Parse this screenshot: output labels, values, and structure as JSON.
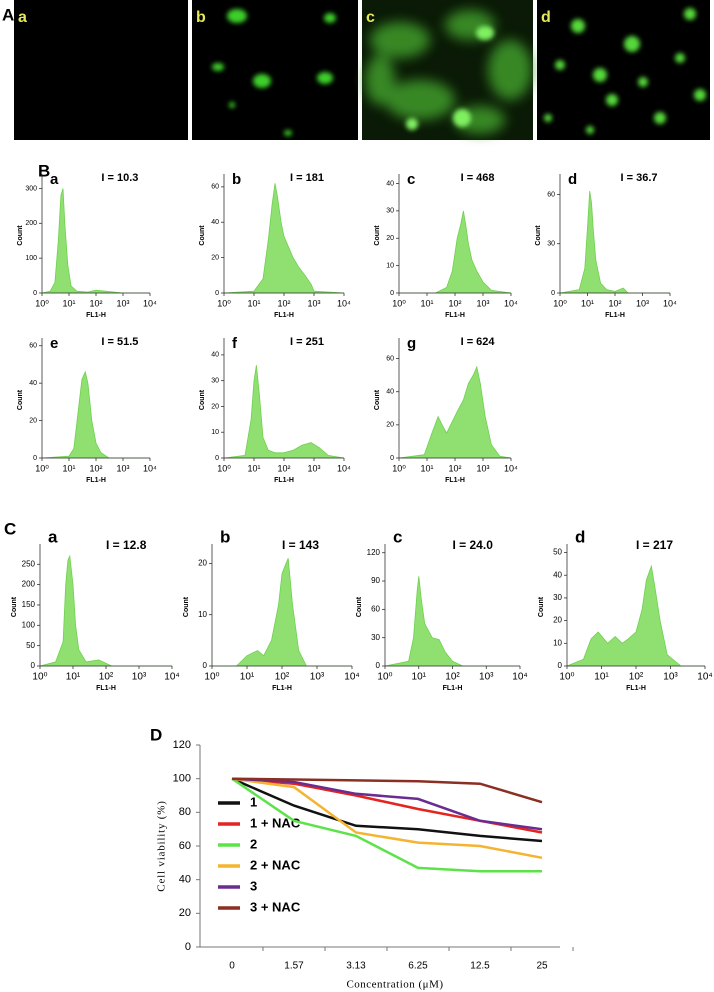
{
  "figure": {
    "panel_labels": [
      "A",
      "B",
      "C",
      "D"
    ],
    "image_labels": [
      "a",
      "b",
      "c",
      "d"
    ]
  },
  "chart_data": [
    {
      "type": "area",
      "panel": "a",
      "annotation": "I = 10.3",
      "x_label": "FL1-H",
      "y_label": "Count",
      "log_x": true,
      "color": "#8fe070",
      "xlim": [
        1,
        10000
      ],
      "xticks": [
        {
          "value": 1,
          "label": "10⁰"
        },
        {
          "value": 10,
          "label": "10¹"
        },
        {
          "value": 100,
          "label": "10²"
        },
        {
          "value": 1000,
          "label": "10³"
        },
        {
          "value": 10000,
          "label": "10⁴"
        }
      ],
      "ylim": [
        0,
        330
      ],
      "yticks": [
        0,
        100,
        200,
        300
      ],
      "x": [
        1,
        2,
        3,
        4,
        5,
        6,
        7,
        9,
        12,
        20,
        50,
        100,
        1000,
        10000
      ],
      "values": [
        0,
        5,
        30,
        150,
        280,
        300,
        200,
        80,
        20,
        5,
        3,
        8,
        0,
        0
      ]
    },
    {
      "type": "area",
      "panel": "b",
      "annotation": "I = 181",
      "x_label": "FL1-H",
      "y_label": "Count",
      "log_x": true,
      "color": "#8fe070",
      "xlim": [
        1,
        10000
      ],
      "xticks": [
        {
          "value": 1,
          "label": "10⁰"
        },
        {
          "value": 10,
          "label": "10¹"
        },
        {
          "value": 100,
          "label": "10²"
        },
        {
          "value": 1000,
          "label": "10³"
        },
        {
          "value": 10000,
          "label": "10⁴"
        }
      ],
      "ylim": [
        0,
        65
      ],
      "yticks": [
        0,
        20,
        40,
        60
      ],
      "x": [
        1,
        10,
        20,
        30,
        40,
        50,
        60,
        80,
        100,
        150,
        200,
        300,
        500,
        800,
        1000,
        10000
      ],
      "values": [
        0,
        1,
        8,
        30,
        50,
        62,
        55,
        40,
        32,
        25,
        20,
        15,
        10,
        5,
        1,
        0
      ]
    },
    {
      "type": "area",
      "panel": "c",
      "annotation": "I = 468",
      "x_label": "FL1-H",
      "y_label": "Count",
      "log_x": true,
      "color": "#8fe070",
      "xlim": [
        1,
        10000
      ],
      "xticks": [
        {
          "value": 1,
          "label": "10⁰"
        },
        {
          "value": 10,
          "label": "10¹"
        },
        {
          "value": 100,
          "label": "10²"
        },
        {
          "value": 1000,
          "label": "10³"
        },
        {
          "value": 10000,
          "label": "10⁴"
        }
      ],
      "ylim": [
        0,
        42
      ],
      "yticks": [
        0,
        10,
        20,
        30,
        40
      ],
      "x": [
        1,
        20,
        50,
        80,
        120,
        160,
        200,
        250,
        300,
        400,
        600,
        1000,
        2000,
        10000
      ],
      "values": [
        0,
        0,
        2,
        8,
        20,
        25,
        30,
        24,
        18,
        12,
        8,
        4,
        1,
        0
      ]
    },
    {
      "type": "area",
      "panel": "d",
      "annotation": "I = 36.7",
      "x_label": "FL1-H",
      "y_label": "Count",
      "log_x": true,
      "color": "#8fe070",
      "xlim": [
        1,
        10000
      ],
      "xticks": [
        {
          "value": 1,
          "label": "10⁰"
        },
        {
          "value": 10,
          "label": "10¹"
        },
        {
          "value": 100,
          "label": "10²"
        },
        {
          "value": 1000,
          "label": "10³"
        },
        {
          "value": 10000,
          "label": "10⁴"
        }
      ],
      "ylim": [
        0,
        70
      ],
      "yticks": [
        0,
        30,
        60
      ],
      "x": [
        1,
        5,
        8,
        10,
        12,
        14,
        16,
        20,
        30,
        50,
        100,
        200,
        300,
        10000
      ],
      "values": [
        0,
        2,
        15,
        40,
        62,
        55,
        40,
        20,
        6,
        2,
        1,
        3,
        0,
        0
      ]
    },
    {
      "type": "area",
      "panel": "e",
      "annotation": "I = 51.5",
      "x_label": "FL1-H",
      "y_label": "Count",
      "log_x": true,
      "color": "#8fe070",
      "xlim": [
        1,
        10000
      ],
      "xticks": [
        {
          "value": 1,
          "label": "10⁰"
        },
        {
          "value": 10,
          "label": "10¹"
        },
        {
          "value": 100,
          "label": "10²"
        },
        {
          "value": 1000,
          "label": "10³"
        },
        {
          "value": 10000,
          "label": "10⁴"
        }
      ],
      "ylim": [
        0,
        62
      ],
      "yticks": [
        0,
        20,
        40,
        60
      ],
      "x": [
        1,
        10,
        15,
        20,
        30,
        40,
        50,
        70,
        100,
        150,
        300,
        10000
      ],
      "values": [
        0,
        1,
        5,
        20,
        42,
        46,
        40,
        20,
        8,
        3,
        0,
        0
      ]
    },
    {
      "type": "area",
      "panel": "f",
      "annotation": "I = 251",
      "x_label": "FL1-H",
      "y_label": "Count",
      "log_x": true,
      "color": "#8fe070",
      "xlim": [
        1,
        10000
      ],
      "xticks": [
        {
          "value": 1,
          "label": "10⁰"
        },
        {
          "value": 10,
          "label": "10¹"
        },
        {
          "value": 100,
          "label": "10²"
        },
        {
          "value": 1000,
          "label": "10³"
        },
        {
          "value": 10000,
          "label": "10⁴"
        }
      ],
      "ylim": [
        0,
        45
      ],
      "yticks": [
        0,
        10,
        20,
        30,
        40
      ],
      "x": [
        1,
        5,
        8,
        10,
        12,
        15,
        20,
        30,
        50,
        100,
        200,
        400,
        800,
        1500,
        3000,
        10000
      ],
      "values": [
        0,
        1,
        15,
        30,
        36,
        25,
        8,
        3,
        2,
        2,
        3,
        5,
        6,
        4,
        1,
        0
      ]
    },
    {
      "type": "area",
      "panel": "g",
      "annotation": "I = 624",
      "x_label": "FL1-H",
      "y_label": "Count",
      "log_x": true,
      "color": "#8fe070",
      "xlim": [
        1,
        10000
      ],
      "xticks": [
        {
          "value": 1,
          "label": "10⁰"
        },
        {
          "value": 10,
          "label": "10¹"
        },
        {
          "value": 100,
          "label": "10²"
        },
        {
          "value": 1000,
          "label": "10³"
        },
        {
          "value": 10000,
          "label": "10⁴"
        }
      ],
      "ylim": [
        0,
        70
      ],
      "yticks": [
        0,
        20,
        40,
        60
      ],
      "x": [
        1,
        8,
        15,
        25,
        35,
        50,
        80,
        120,
        200,
        300,
        450,
        600,
        800,
        1200,
        2000,
        4000,
        10000
      ],
      "values": [
        0,
        2,
        15,
        25,
        20,
        15,
        22,
        28,
        35,
        45,
        50,
        55,
        45,
        25,
        8,
        1,
        0
      ]
    },
    {
      "type": "area",
      "panel": "a",
      "annotation": "I = 12.8",
      "x_label": "FL1-H",
      "y_label": "Count",
      "log_x": true,
      "color": "#8fe070",
      "xlim": [
        1,
        10000
      ],
      "xticks": [
        {
          "value": 1,
          "label": "10⁰"
        },
        {
          "value": 10,
          "label": "10¹"
        },
        {
          "value": 100,
          "label": "10²"
        },
        {
          "value": 1000,
          "label": "10³"
        },
        {
          "value": 10000,
          "label": "10⁴"
        }
      ],
      "ylim": [
        0,
        290
      ],
      "yticks": [
        0,
        50,
        100,
        150,
        200,
        250
      ],
      "x": [
        1,
        3,
        5,
        6,
        7,
        8,
        10,
        12,
        15,
        25,
        60,
        80,
        150,
        10000
      ],
      "values": [
        0,
        10,
        60,
        200,
        260,
        270,
        200,
        100,
        40,
        10,
        15,
        10,
        0,
        0
      ]
    },
    {
      "type": "area",
      "panel": "b",
      "annotation": "I = 143",
      "x_label": "FL1-H",
      "y_label": "Count",
      "log_x": true,
      "color": "#8fe070",
      "xlim": [
        1,
        10000
      ],
      "xticks": [
        {
          "value": 1,
          "label": "10⁰"
        },
        {
          "value": 10,
          "label": "10¹"
        },
        {
          "value": 100,
          "label": "10²"
        },
        {
          "value": 1000,
          "label": "10³"
        },
        {
          "value": 10000,
          "label": "10⁴"
        }
      ],
      "ylim": [
        0,
        23
      ],
      "yticks": [
        0,
        10,
        20
      ],
      "x": [
        1,
        5,
        10,
        20,
        30,
        50,
        80,
        100,
        130,
        150,
        200,
        300,
        500,
        10000
      ],
      "values": [
        0,
        0,
        2,
        3,
        2,
        5,
        12,
        18,
        20,
        21,
        12,
        3,
        0,
        0
      ]
    },
    {
      "type": "area",
      "panel": "c",
      "annotation": "I = 24.0",
      "x_label": "FL1-H",
      "y_label": "Count",
      "log_x": true,
      "color": "#8fe070",
      "xlim": [
        1,
        10000
      ],
      "xticks": [
        {
          "value": 1,
          "label": "10⁰"
        },
        {
          "value": 10,
          "label": "10¹"
        },
        {
          "value": 100,
          "label": "10²"
        },
        {
          "value": 1000,
          "label": "10³"
        },
        {
          "value": 10000,
          "label": "10⁴"
        }
      ],
      "ylim": [
        0,
        125
      ],
      "yticks": [
        0,
        30,
        60,
        90,
        120
      ],
      "x": [
        1,
        5,
        7,
        9,
        10,
        12,
        15,
        25,
        40,
        60,
        100,
        200,
        10000
      ],
      "values": [
        0,
        5,
        30,
        80,
        95,
        70,
        45,
        30,
        28,
        15,
        5,
        0,
        0
      ]
    },
    {
      "type": "area",
      "panel": "d",
      "annotation": "I = 217",
      "x_label": "FL1-H",
      "y_label": "Count",
      "log_x": true,
      "color": "#8fe070",
      "xlim": [
        1,
        10000
      ],
      "xticks": [
        {
          "value": 1,
          "label": "10⁰"
        },
        {
          "value": 10,
          "label": "10¹"
        },
        {
          "value": 100,
          "label": "10²"
        },
        {
          "value": 1000,
          "label": "10³"
        },
        {
          "value": 10000,
          "label": "10⁴"
        }
      ],
      "ylim": [
        0,
        52
      ],
      "yticks": [
        0,
        10,
        20,
        30,
        40,
        50
      ],
      "x": [
        1,
        3,
        5,
        8,
        15,
        25,
        40,
        60,
        100,
        150,
        200,
        280,
        350,
        500,
        800,
        2000,
        10000
      ],
      "values": [
        0,
        3,
        12,
        15,
        10,
        13,
        10,
        12,
        15,
        25,
        38,
        44,
        35,
        20,
        5,
        0,
        0
      ]
    },
    {
      "type": "line",
      "x_label": "Concentration (μM)",
      "y_label": "Cell viability (%)",
      "categories": [
        "0",
        "1.57",
        "3.13",
        "6.25",
        "12.5",
        "25"
      ],
      "ylim": [
        0,
        120
      ],
      "yticks": [
        0,
        20,
        40,
        60,
        80,
        100,
        120
      ],
      "series": [
        {
          "name": "1",
          "color": "#111111",
          "values": [
            100,
            84,
            72,
            70,
            66,
            63
          ]
        },
        {
          "name": "1 + NAC",
          "color": "#e3241f",
          "values": [
            100,
            97,
            90,
            82,
            75,
            68
          ]
        },
        {
          "name": "2",
          "color": "#5de34a",
          "values": [
            100,
            75,
            66,
            47,
            45,
            45
          ]
        },
        {
          "name": "2 + NAC",
          "color": "#f5b332",
          "values": [
            100,
            95,
            68,
            62,
            60,
            53
          ]
        },
        {
          "name": "3",
          "color": "#6a2c91",
          "values": [
            100,
            98,
            91,
            88,
            75,
            70
          ]
        },
        {
          "name": "3 + NAC",
          "color": "#8b2f23",
          "values": [
            100,
            99.5,
            99,
            98.5,
            97,
            86
          ]
        }
      ]
    }
  ]
}
